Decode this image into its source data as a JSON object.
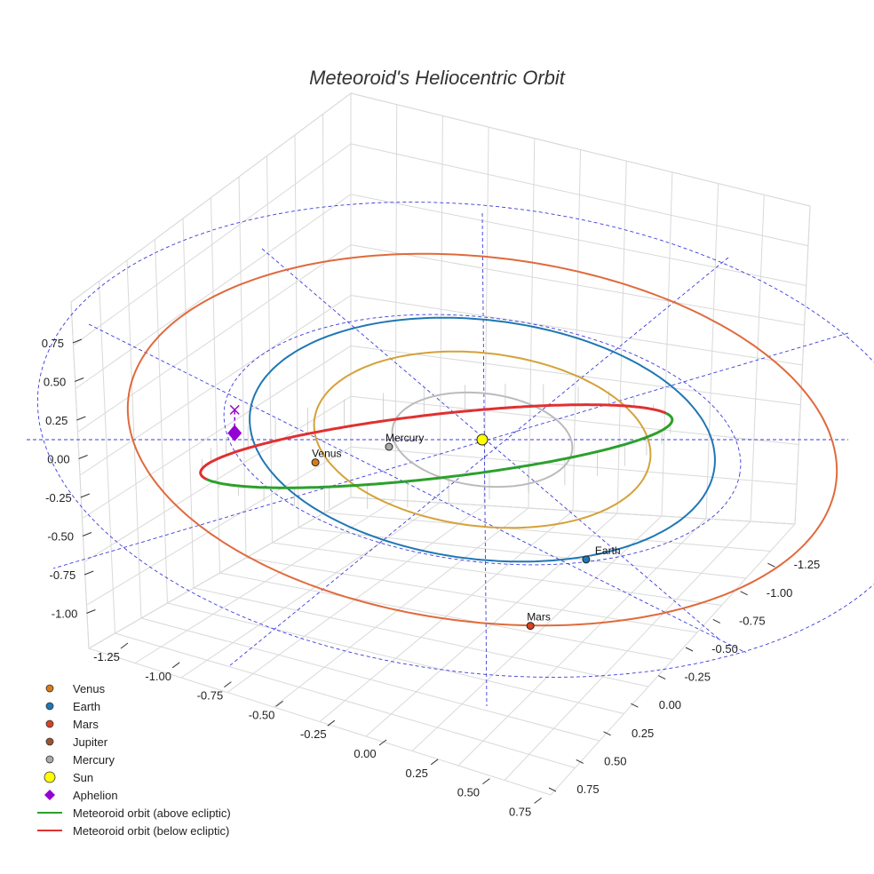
{
  "chart_data": {
    "type": "line3d",
    "title": "Meteoroid's Heliocentric Orbit",
    "xlabel": "",
    "ylabel": "",
    "zlabel": "",
    "x_ticks": [
      "-1.25",
      "-1.00",
      "-0.75",
      "-0.50",
      "-0.25",
      "0.00",
      "0.25",
      "0.50",
      "0.75"
    ],
    "y_ticks": [
      "-1.25",
      "-1.00",
      "-0.75",
      "-0.50",
      "-0.25",
      "0.00",
      "0.25",
      "0.50",
      "0.75"
    ],
    "z_ticks": [
      "0.75",
      "0.50",
      "0.25",
      "0.00",
      "-0.25",
      "-0.50",
      "-0.75",
      "-1.00"
    ],
    "grid": true,
    "legend_position": "bottom-left",
    "orbits": [
      {
        "body": "Mercury",
        "a": 0.387,
        "color": "#bbbbbb"
      },
      {
        "body": "Venus",
        "a": 0.723,
        "color": "#d4a23a"
      },
      {
        "body": "Earth",
        "a": 1.0,
        "color": "#1f77b4"
      },
      {
        "body": "Mars",
        "a": 1.524,
        "color": "#e06a3c"
      }
    ],
    "planets": [
      {
        "name": "Venus",
        "x": -0.62,
        "y": 0.37,
        "z": 0.0,
        "color": "#d97b1b"
      },
      {
        "name": "Earth",
        "x": 0.47,
        "y": 0.88,
        "z": 0.0,
        "color": "#1f77b4"
      },
      {
        "name": "Mars",
        "x": 0.3,
        "y": 1.49,
        "z": 0.0,
        "color": "#d8431f"
      },
      {
        "name": "Mercury",
        "x": -0.35,
        "y": 0.16,
        "z": 0.0,
        "color": "#aaaaaa"
      },
      {
        "name": "Sun",
        "x": 0.0,
        "y": 0.0,
        "z": 0.0,
        "color": "#ffff00"
      }
    ],
    "meteoroid_orbit": {
      "above_color": "#2ca02c",
      "below_color": "#e03030",
      "aphelion": {
        "x": -0.95,
        "y": 0.15,
        "z": -0.05
      },
      "aphelion_projection": {
        "x": -0.95,
        "y": 0.15,
        "z": 0.1
      }
    },
    "legend": [
      {
        "label": "Venus",
        "marker": "circle",
        "color": "#d97b1b"
      },
      {
        "label": "Earth",
        "marker": "circle",
        "color": "#1f77b4"
      },
      {
        "label": "Mars",
        "marker": "circle",
        "color": "#d8431f"
      },
      {
        "label": "Jupiter",
        "marker": "circle",
        "color": "#a0522d"
      },
      {
        "label": "Mercury",
        "marker": "circle",
        "color": "#aaaaaa"
      },
      {
        "label": "Sun",
        "marker": "circle-large",
        "color": "#ffff00"
      },
      {
        "label": "Aphelion",
        "marker": "diamond",
        "color": "#9400d3"
      },
      {
        "label": "Meteoroid orbit (above ecliptic)",
        "marker": "line",
        "color": "#2ca02c"
      },
      {
        "label": "Meteoroid orbit (below ecliptic)",
        "marker": "line",
        "color": "#e03030"
      }
    ]
  }
}
